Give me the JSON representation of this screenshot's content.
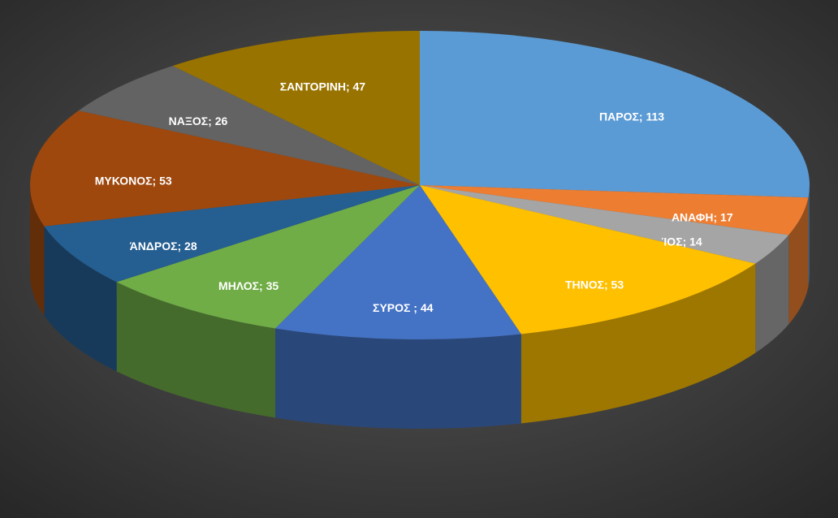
{
  "chart_data": {
    "type": "pie",
    "values": [
      113,
      17,
      14,
      53,
      44,
      35,
      28,
      53,
      26,
      47
    ],
    "value_labels": [
      "ΠΑΡΟΣ; 113",
      "ΑΝΑΦΗ; 17",
      "ΊΟΣ; 14",
      "ΤΗΝΟΣ; 53",
      "ΣΥΡΟΣ ; 44",
      "ΜΗΛΟΣ; 35",
      "ΆΝΔΡΟΣ; 28",
      "ΜΥΚΟΝΟΣ; 53",
      "ΝΑΞΟΣ; 26",
      "ΣΑΝΤΟΡΙΝΗ; 47"
    ],
    "colors": [
      "#5b9bd5",
      "#ed7d31",
      "#a5a5a5",
      "#ffc000",
      "#4472c4",
      "#70ad47",
      "#255e91",
      "#9e480e",
      "#636363",
      "#997300"
    ]
  }
}
